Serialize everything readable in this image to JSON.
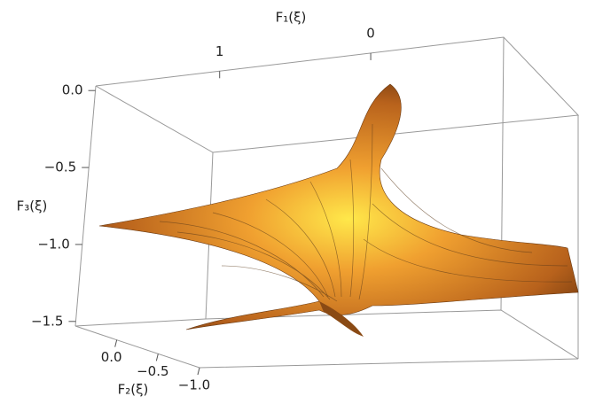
{
  "chart_data": {
    "type": "surface3d",
    "xlabel": "F₁(ξ)",
    "ylabel": "F₂(ξ)",
    "zlabel": "F₃(ξ)",
    "xlim": [
      1.82,
      -0.88
    ],
    "xticks": [
      1,
      0
    ],
    "ylim": [
      0.5,
      -1.0
    ],
    "yticks": [
      {
        "value": 0,
        "label": "0.0"
      },
      {
        "value": -0.5,
        "label": "−0.5"
      },
      {
        "value": -1.0,
        "label": "−1.0"
      }
    ],
    "zlim": [
      0.03,
      -1.53
    ],
    "zticks": [
      {
        "value": 0,
        "label": "0.0"
      },
      {
        "value": -0.5,
        "label": "−0.5"
      },
      {
        "value": -1.0,
        "label": "−1.0"
      },
      {
        "value": -1.5,
        "label": "−1.5"
      }
    ],
    "color": "#e08a2c"
  }
}
